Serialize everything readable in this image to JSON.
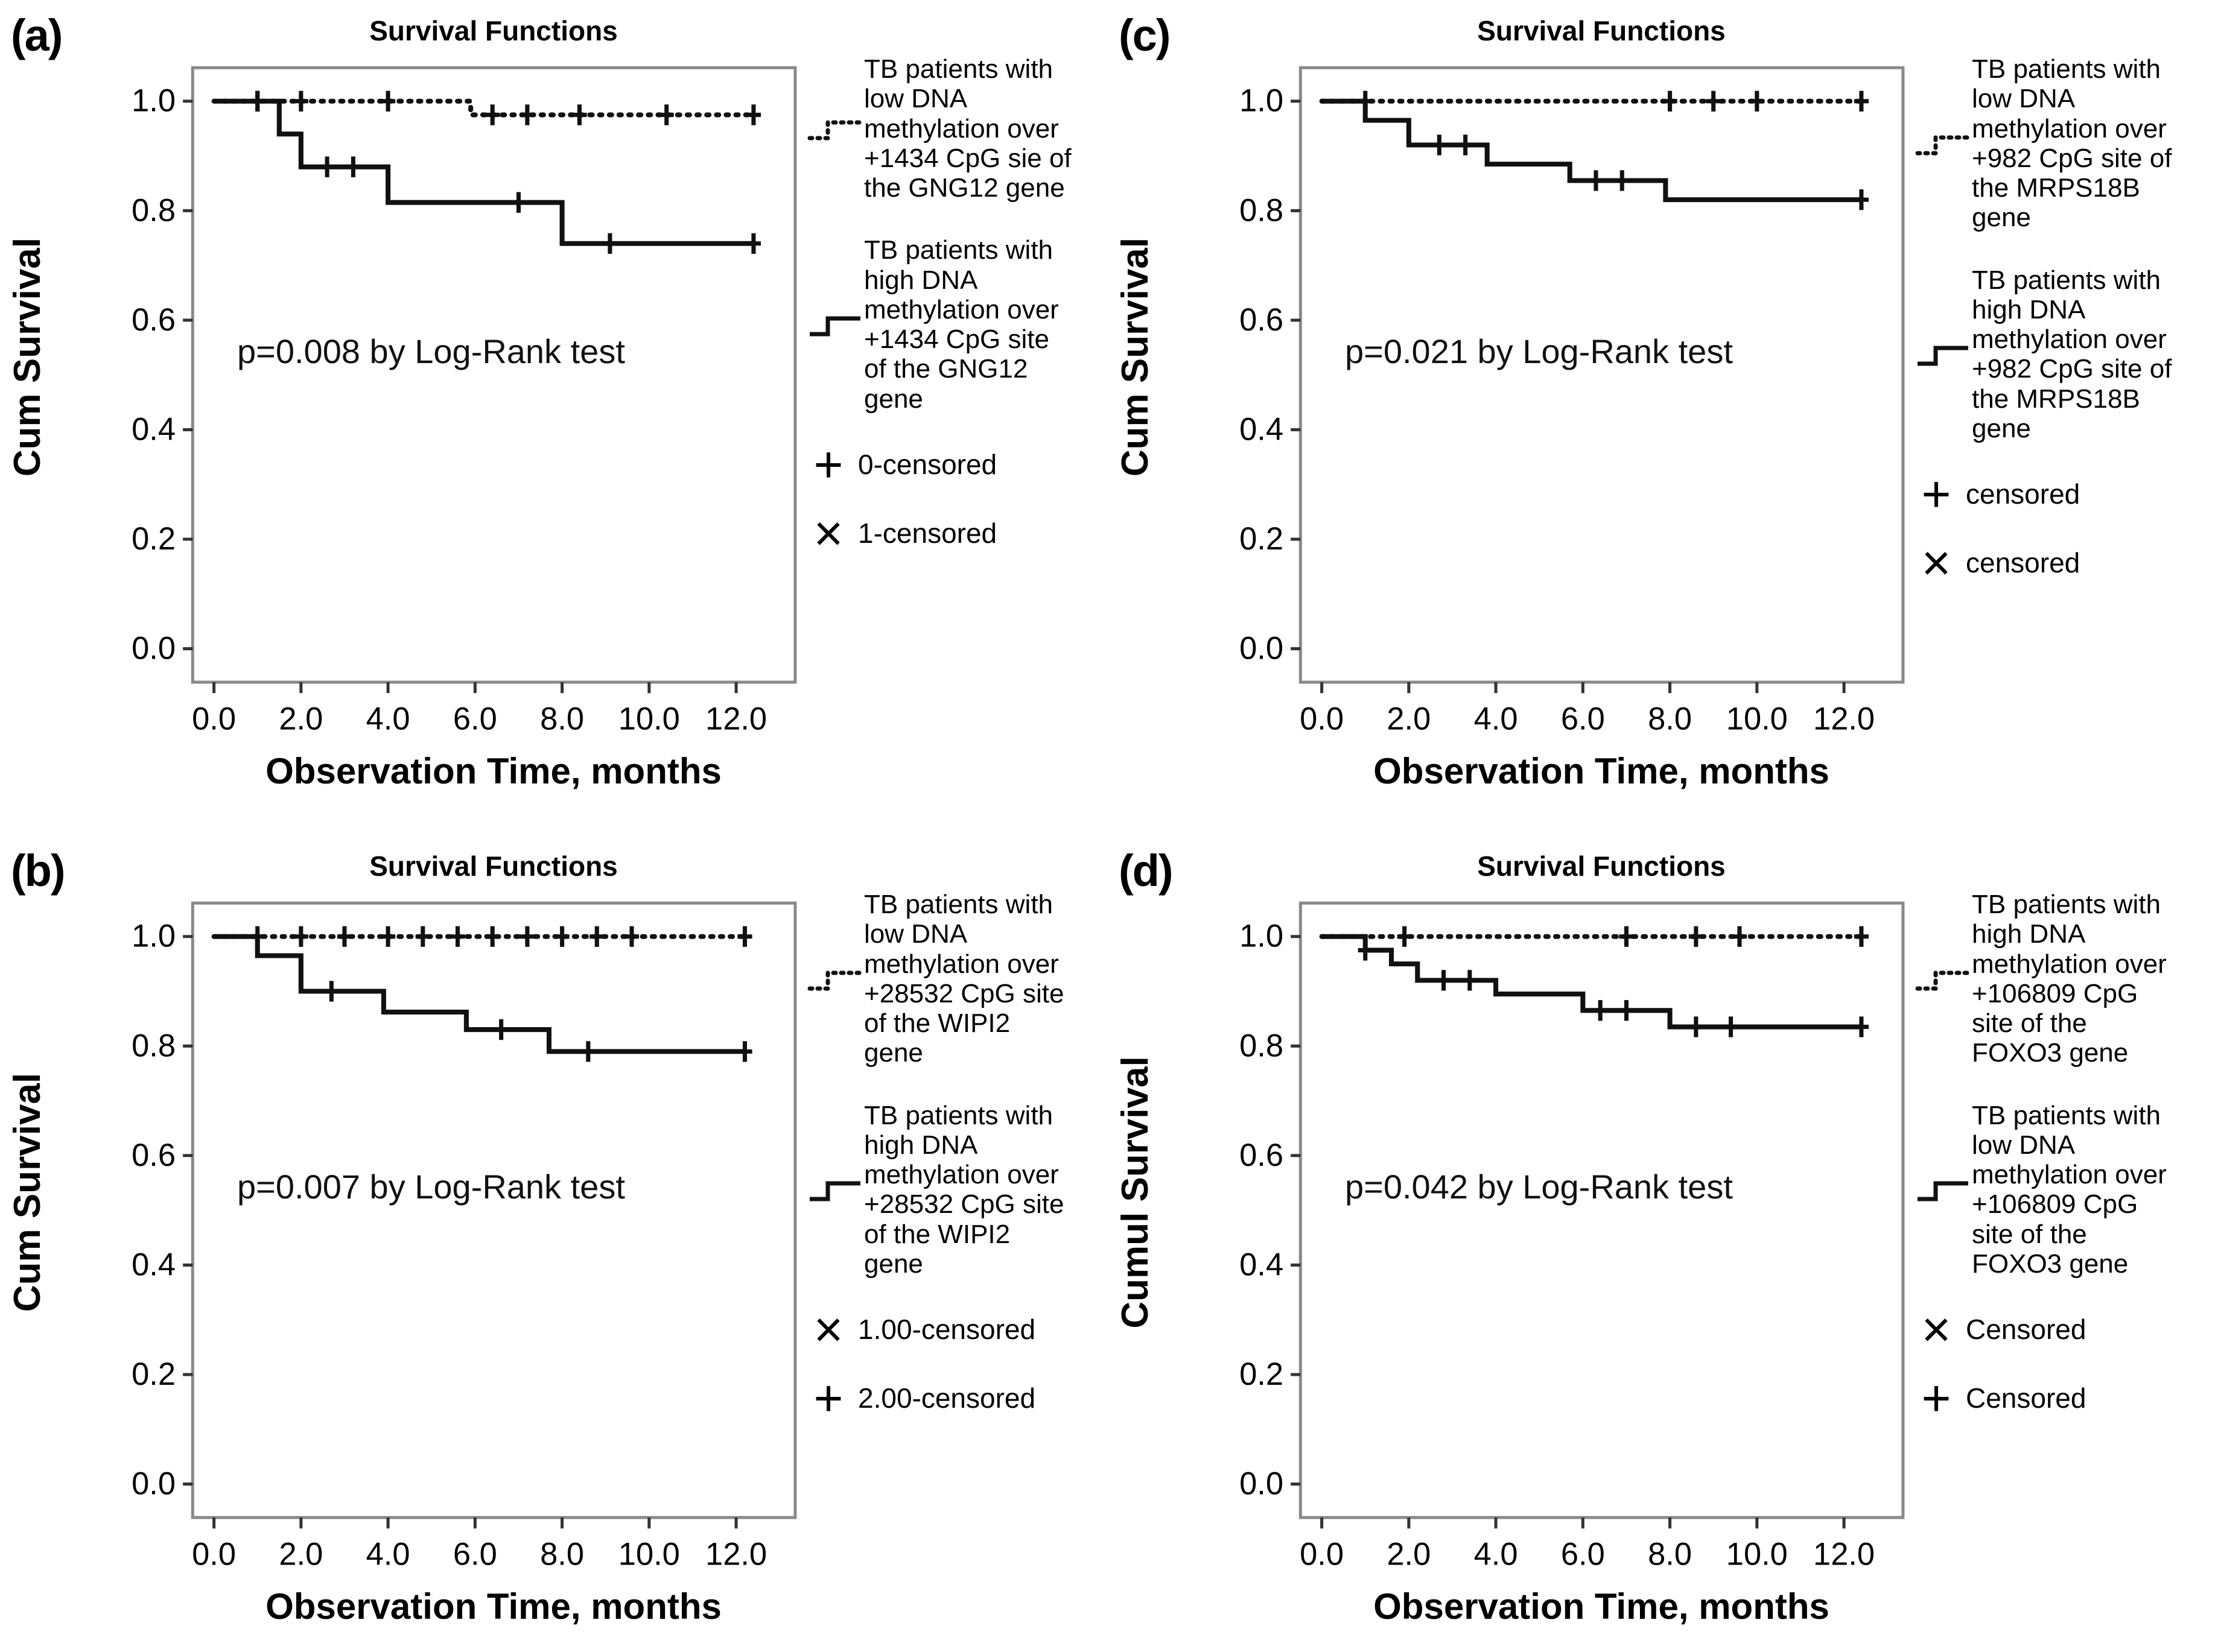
{
  "figure_title": "Survival Functions (Kaplan-Meier panels a-d)",
  "colors": {
    "curve": "#111111",
    "frame": "#8a8a8a",
    "tick": "#333333",
    "background": "#ffffff",
    "text": "#000000"
  },
  "chart_data": [
    {
      "type": "line",
      "subtype": "kaplan-meier-step",
      "panel_label": "(a)",
      "title": "Survival Functions",
      "ylabel": "Cum Survival",
      "xlabel": "Observation Time, months",
      "p_value_text": "p=0.008 by Log-Rank test",
      "xlim": [
        0,
        12.9
      ],
      "ylim": [
        0,
        1.0
      ],
      "grid": false,
      "legend_position": "right",
      "x_ticks": [
        {
          "v": 0,
          "label": "0.0"
        },
        {
          "v": 2,
          "label": "2.0"
        },
        {
          "v": 4,
          "label": "4.0"
        },
        {
          "v": 6,
          "label": "6.0"
        },
        {
          "v": 8,
          "label": "8.0"
        },
        {
          "v": 10,
          "label": "10.0"
        },
        {
          "v": 12,
          "label": "12.0"
        }
      ],
      "y_ticks": [
        {
          "v": 1.0,
          "label": "1.0"
        },
        {
          "v": 0.8,
          "label": "0.8"
        },
        {
          "v": 0.6,
          "label": "0.6"
        },
        {
          "v": 0.4,
          "label": "0.4"
        },
        {
          "v": 0.2,
          "label": "0.2"
        },
        {
          "v": 0.0,
          "label": "0.0"
        }
      ],
      "series": [
        {
          "name": "TB patients with low DNA methylation over +1434 CpG sie of the GNG12 gene",
          "style": "dotted",
          "steps": [
            [
              0,
              1.0
            ],
            [
              5.9,
              0.975
            ]
          ],
          "end_x": 12.4,
          "censor_marks": [
            [
              1,
              1.0
            ],
            [
              2,
              1.0
            ],
            [
              4,
              1.0
            ],
            [
              6.4,
              0.975
            ],
            [
              7.2,
              0.975
            ],
            [
              8.4,
              0.975
            ],
            [
              10.4,
              0.975
            ],
            [
              12.4,
              0.975
            ]
          ]
        },
        {
          "name": "TB patients with high DNA methylation over +1434 CpG site of the GNG12 gene",
          "style": "solid",
          "steps": [
            [
              0,
              1.0
            ],
            [
              1.5,
              0.94
            ],
            [
              2,
              0.88
            ],
            [
              4,
              0.815
            ],
            [
              8,
              0.74
            ]
          ],
          "end_x": 12.4,
          "censor_marks": [
            [
              1,
              1.0
            ],
            [
              2.6,
              0.88
            ],
            [
              3.2,
              0.88
            ],
            [
              7,
              0.815
            ],
            [
              9.1,
              0.74
            ],
            [
              12.4,
              0.74
            ]
          ]
        }
      ],
      "censored_legend": [
        {
          "marker": "+",
          "label": "0-censored"
        },
        {
          "marker": "×",
          "label": "1-censored"
        }
      ]
    },
    {
      "type": "line",
      "subtype": "kaplan-meier-step",
      "panel_label": "(c)",
      "title": "Survival Functions",
      "ylabel": "Cum Survival",
      "xlabel": "Observation Time, months",
      "p_value_text": "p=0.021 by Log-Rank test",
      "xlim": [
        0,
        12.9
      ],
      "ylim": [
        0,
        1.0
      ],
      "grid": false,
      "legend_position": "right",
      "x_ticks": [
        {
          "v": 0,
          "label": "0.0"
        },
        {
          "v": 2,
          "label": "2.0"
        },
        {
          "v": 4,
          "label": "4.0"
        },
        {
          "v": 6,
          "label": "6.0"
        },
        {
          "v": 8,
          "label": "8.0"
        },
        {
          "v": 10,
          "label": "10.0"
        },
        {
          "v": 12,
          "label": "12.0"
        }
      ],
      "y_ticks": [
        {
          "v": 1.0,
          "label": "1.0"
        },
        {
          "v": 0.8,
          "label": "0.8"
        },
        {
          "v": 0.6,
          "label": "0.6"
        },
        {
          "v": 0.4,
          "label": "0.4"
        },
        {
          "v": 0.2,
          "label": "0.2"
        },
        {
          "v": 0.0,
          "label": "0.0"
        }
      ],
      "series": [
        {
          "name": "TB patients with low DNA methylation over +982 CpG site of the MRPS18B gene",
          "style": "dotted",
          "steps": [
            [
              0,
              1.0
            ]
          ],
          "end_x": 12.4,
          "censor_marks": [
            [
              1,
              1.0
            ],
            [
              8,
              1.0
            ],
            [
              9,
              1.0
            ],
            [
              10,
              1.0
            ],
            [
              12.4,
              1.0
            ]
          ]
        },
        {
          "name": "TB patients with high DNA methylation over +982 CpG site of the MRPS18B gene",
          "style": "solid",
          "steps": [
            [
              0,
              1.0
            ],
            [
              1,
              0.965
            ],
            [
              2,
              0.92
            ],
            [
              3.8,
              0.885
            ],
            [
              5.7,
              0.855
            ],
            [
              7.9,
              0.82
            ]
          ],
          "end_x": 12.4,
          "censor_marks": [
            [
              2.7,
              0.92
            ],
            [
              3.3,
              0.92
            ],
            [
              6.3,
              0.855
            ],
            [
              6.9,
              0.855
            ],
            [
              12.4,
              0.82
            ]
          ]
        }
      ],
      "censored_legend": [
        {
          "marker": "+",
          "label": "censored"
        },
        {
          "marker": "×",
          "label": "censored"
        }
      ]
    },
    {
      "type": "line",
      "subtype": "kaplan-meier-step",
      "panel_label": "(b)",
      "title": "Survival Functions",
      "ylabel": "Cum Survival",
      "xlabel": "Observation Time, months",
      "p_value_text": "p=0.007 by Log-Rank test",
      "xlim": [
        0,
        12.9
      ],
      "ylim": [
        0,
        1.0
      ],
      "grid": false,
      "legend_position": "right",
      "x_ticks": [
        {
          "v": 0,
          "label": "0.0"
        },
        {
          "v": 2,
          "label": "2.0"
        },
        {
          "v": 4,
          "label": "4.0"
        },
        {
          "v": 6,
          "label": "6.0"
        },
        {
          "v": 8,
          "label": "8.0"
        },
        {
          "v": 10,
          "label": "10.0"
        },
        {
          "v": 12,
          "label": "12.0"
        }
      ],
      "y_ticks": [
        {
          "v": 1.0,
          "label": "1.0"
        },
        {
          "v": 0.8,
          "label": "0.8"
        },
        {
          "v": 0.6,
          "label": "0.6"
        },
        {
          "v": 0.4,
          "label": "0.4"
        },
        {
          "v": 0.2,
          "label": "0.2"
        },
        {
          "v": 0.0,
          "label": "0.0"
        }
      ],
      "series": [
        {
          "name": "TB patients with low DNA methylation over +28532 CpG site of the WIPI2 gene",
          "style": "dotted",
          "steps": [
            [
              0,
              1.0
            ]
          ],
          "end_x": 12.2,
          "censor_marks": [
            [
              1,
              1.0
            ],
            [
              2,
              1.0
            ],
            [
              3,
              1.0
            ],
            [
              4,
              1.0
            ],
            [
              4.8,
              1.0
            ],
            [
              5.6,
              1.0
            ],
            [
              6.4,
              1.0
            ],
            [
              7.2,
              1.0
            ],
            [
              8,
              1.0
            ],
            [
              8.8,
              1.0
            ],
            [
              9.6,
              1.0
            ],
            [
              12.2,
              1.0
            ]
          ]
        },
        {
          "name": "TB patients with high DNA methylation over +28532 CpG site of the WIPI2 gene",
          "style": "solid",
          "steps": [
            [
              0,
              1.0
            ],
            [
              1,
              0.965
            ],
            [
              2,
              0.9
            ],
            [
              3.9,
              0.862
            ],
            [
              5.8,
              0.83
            ],
            [
              7.7,
              0.79
            ]
          ],
          "end_x": 12.2,
          "censor_marks": [
            [
              2.7,
              0.9
            ],
            [
              6.6,
              0.83
            ],
            [
              8.6,
              0.79
            ],
            [
              12.2,
              0.79
            ]
          ]
        }
      ],
      "censored_legend": [
        {
          "marker": "×",
          "label": "1.00-censored"
        },
        {
          "marker": "+",
          "label": "2.00-censored"
        }
      ]
    },
    {
      "type": "line",
      "subtype": "kaplan-meier-step",
      "panel_label": "(d)",
      "title": "Survival Functions",
      "ylabel": "Cumul Survival",
      "xlabel": "Observation Time, months",
      "p_value_text": "p=0.042 by Log-Rank test",
      "xlim": [
        0,
        12.9
      ],
      "ylim": [
        0,
        1.0
      ],
      "grid": false,
      "legend_position": "right",
      "x_ticks": [
        {
          "v": 0,
          "label": "0.0"
        },
        {
          "v": 2,
          "label": "2.0"
        },
        {
          "v": 4,
          "label": "4.0"
        },
        {
          "v": 6,
          "label": "6.0"
        },
        {
          "v": 8,
          "label": "8.0"
        },
        {
          "v": 10,
          "label": "10.0"
        },
        {
          "v": 12,
          "label": "12.0"
        }
      ],
      "y_ticks": [
        {
          "v": 1.0,
          "label": "1.0"
        },
        {
          "v": 0.8,
          "label": "0.8"
        },
        {
          "v": 0.6,
          "label": "0.6"
        },
        {
          "v": 0.4,
          "label": "0.4"
        },
        {
          "v": 0.2,
          "label": "0.2"
        },
        {
          "v": 0.0,
          "label": "0.0"
        }
      ],
      "series": [
        {
          "name": "TB patients with high DNA methylation over +106809 CpG site of the FOXO3 gene",
          "style": "dotted",
          "steps": [
            [
              0,
              1.0
            ]
          ],
          "end_x": 12.4,
          "censor_marks": [
            [
              1.9,
              1.0
            ],
            [
              7,
              1.0
            ],
            [
              8.6,
              1.0
            ],
            [
              9.6,
              1.0
            ],
            [
              12.4,
              1.0
            ]
          ]
        },
        {
          "name": "TB patients with low DNA methylation over +106809 CpG site of the FOXO3 gene",
          "style": "solid",
          "steps": [
            [
              0,
              1.0
            ],
            [
              1,
              0.975
            ],
            [
              1.6,
              0.95
            ],
            [
              2.2,
              0.92
            ],
            [
              4,
              0.895
            ],
            [
              6,
              0.865
            ],
            [
              8,
              0.835
            ]
          ],
          "end_x": 12.4,
          "censor_marks": [
            [
              1,
              0.975
            ],
            [
              2.8,
              0.92
            ],
            [
              3.4,
              0.92
            ],
            [
              6.4,
              0.865
            ],
            [
              7,
              0.865
            ],
            [
              8.6,
              0.835
            ],
            [
              9.4,
              0.835
            ],
            [
              12.4,
              0.835
            ]
          ]
        }
      ],
      "censored_legend": [
        {
          "marker": "×",
          "label": "Censored"
        },
        {
          "marker": "+",
          "label": "Censored"
        }
      ]
    }
  ]
}
